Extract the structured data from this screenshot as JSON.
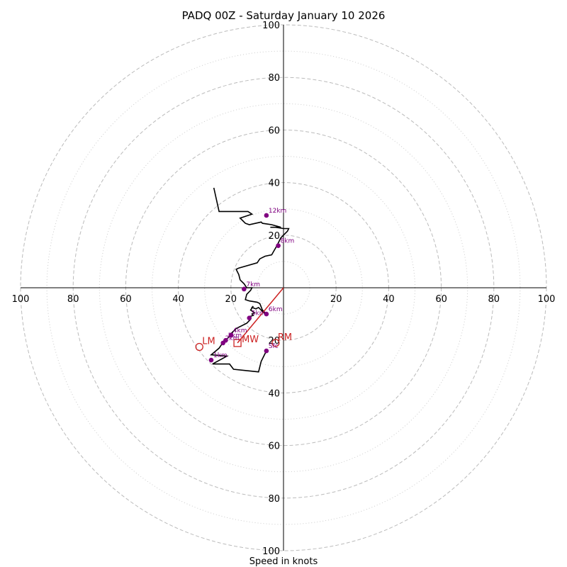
{
  "chart_data": {
    "type": "hodograph",
    "title": "PADQ 00Z - Saturday January 10 2026",
    "xlabel": "Speed in knots",
    "range": [
      -100,
      100
    ],
    "ring_major": [
      20,
      40,
      60,
      80,
      100
    ],
    "ring_minor": [
      10,
      30,
      50,
      70,
      90
    ],
    "tick_values": [
      20,
      40,
      60,
      80,
      100
    ],
    "tick_labels": {
      "left": [
        "20",
        "40",
        "60",
        "80",
        "100"
      ],
      "right": [
        "20",
        "40",
        "60",
        "80",
        "100"
      ],
      "top": [
        "20",
        "40",
        "60",
        "80",
        "100"
      ],
      "bottom": [
        "20",
        "40",
        "60",
        "80",
        "100"
      ]
    },
    "trace": [
      [
        6.5,
        -24
      ],
      [
        8.5,
        -28
      ],
      [
        9.5,
        -32
      ],
      [
        19,
        -31
      ],
      [
        20.5,
        -29
      ],
      [
        27,
        -29
      ],
      [
        21.5,
        -26
      ],
      [
        27.5,
        -25.5
      ],
      [
        24.5,
        -23
      ],
      [
        23.5,
        -21.5
      ],
      [
        22.5,
        -20
      ],
      [
        21,
        -19
      ],
      [
        20,
        -17.5
      ],
      [
        18,
        -15.5
      ],
      [
        14,
        -13.5
      ],
      [
        12.5,
        -12
      ],
      [
        13,
        -11
      ],
      [
        11.5,
        -10.5
      ],
      [
        12,
        -10
      ],
      [
        11,
        -9.5
      ],
      [
        12.5,
        -8.5
      ],
      [
        11.5,
        -7
      ],
      [
        12,
        -7.5
      ],
      [
        10.5,
        -8
      ],
      [
        9.5,
        -7.5
      ],
      [
        7,
        -10
      ],
      [
        6.5,
        -10
      ],
      [
        8,
        -8.5
      ],
      [
        9,
        -6
      ],
      [
        10,
        -5.5
      ],
      [
        13,
        -5
      ],
      [
        14.5,
        -4.5
      ],
      [
        14,
        -2.5
      ],
      [
        12.5,
        -1
      ],
      [
        12,
        0
      ],
      [
        14,
        0
      ],
      [
        15,
        1.5
      ],
      [
        16,
        2.5
      ],
      [
        16.5,
        3
      ],
      [
        17,
        5
      ],
      [
        18,
        7
      ],
      [
        17,
        7.5
      ],
      [
        10,
        9.5
      ],
      [
        9,
        11
      ],
      [
        7,
        12
      ],
      [
        4.5,
        12.5
      ],
      [
        2.5,
        16
      ],
      [
        1,
        19
      ],
      [
        0,
        20
      ],
      [
        -1,
        21
      ],
      [
        -1.5,
        21.5
      ],
      [
        -2,
        22.5
      ],
      [
        0,
        22.5
      ],
      [
        3,
        23
      ],
      [
        5,
        23
      ],
      [
        1,
        23
      ],
      [
        4.5,
        24
      ],
      [
        8,
        24.5
      ],
      [
        8.5,
        25
      ],
      [
        13,
        24
      ],
      [
        14.5,
        24.5
      ],
      [
        16.5,
        26.5
      ],
      [
        12,
        28
      ],
      [
        13.5,
        29
      ],
      [
        24.5,
        29
      ],
      [
        26.5,
        38
      ]
    ],
    "height_markers": [
      {
        "label": "Sfc",
        "u": 6.5,
        "v": -24
      },
      {
        "label": "1km",
        "u": 27.5,
        "v": -27.5
      },
      {
        "label": "2km",
        "u": 23,
        "v": -21
      },
      {
        "label": "3km",
        "u": 22,
        "v": -20
      },
      {
        "label": "4km",
        "u": 20,
        "v": -18
      },
      {
        "label": "5km",
        "u": 13,
        "v": -11.5
      },
      {
        "label": "6km",
        "u": 6.5,
        "v": -10
      },
      {
        "label": "7km",
        "u": 15,
        "v": -0.5
      },
      {
        "label": "8km",
        "u": 2,
        "v": 16
      },
      {
        "label": "12km",
        "u": 6.5,
        "v": 27.5
      }
    ],
    "motion": {
      "mean_wind": {
        "label": "MW",
        "u": 17.5,
        "v": -21
      },
      "left_mover": {
        "label": "LM",
        "u": 32,
        "v": -22.5
      },
      "right_mover": {
        "label": "RM",
        "u": 3,
        "v": -21
      }
    },
    "colors": {
      "trace": "#000000",
      "markers": "#800080",
      "motion": "#cc2222",
      "ring_major": "#bbbbbb",
      "ring_minor": "#cccccc",
      "axis": "#000000"
    }
  }
}
